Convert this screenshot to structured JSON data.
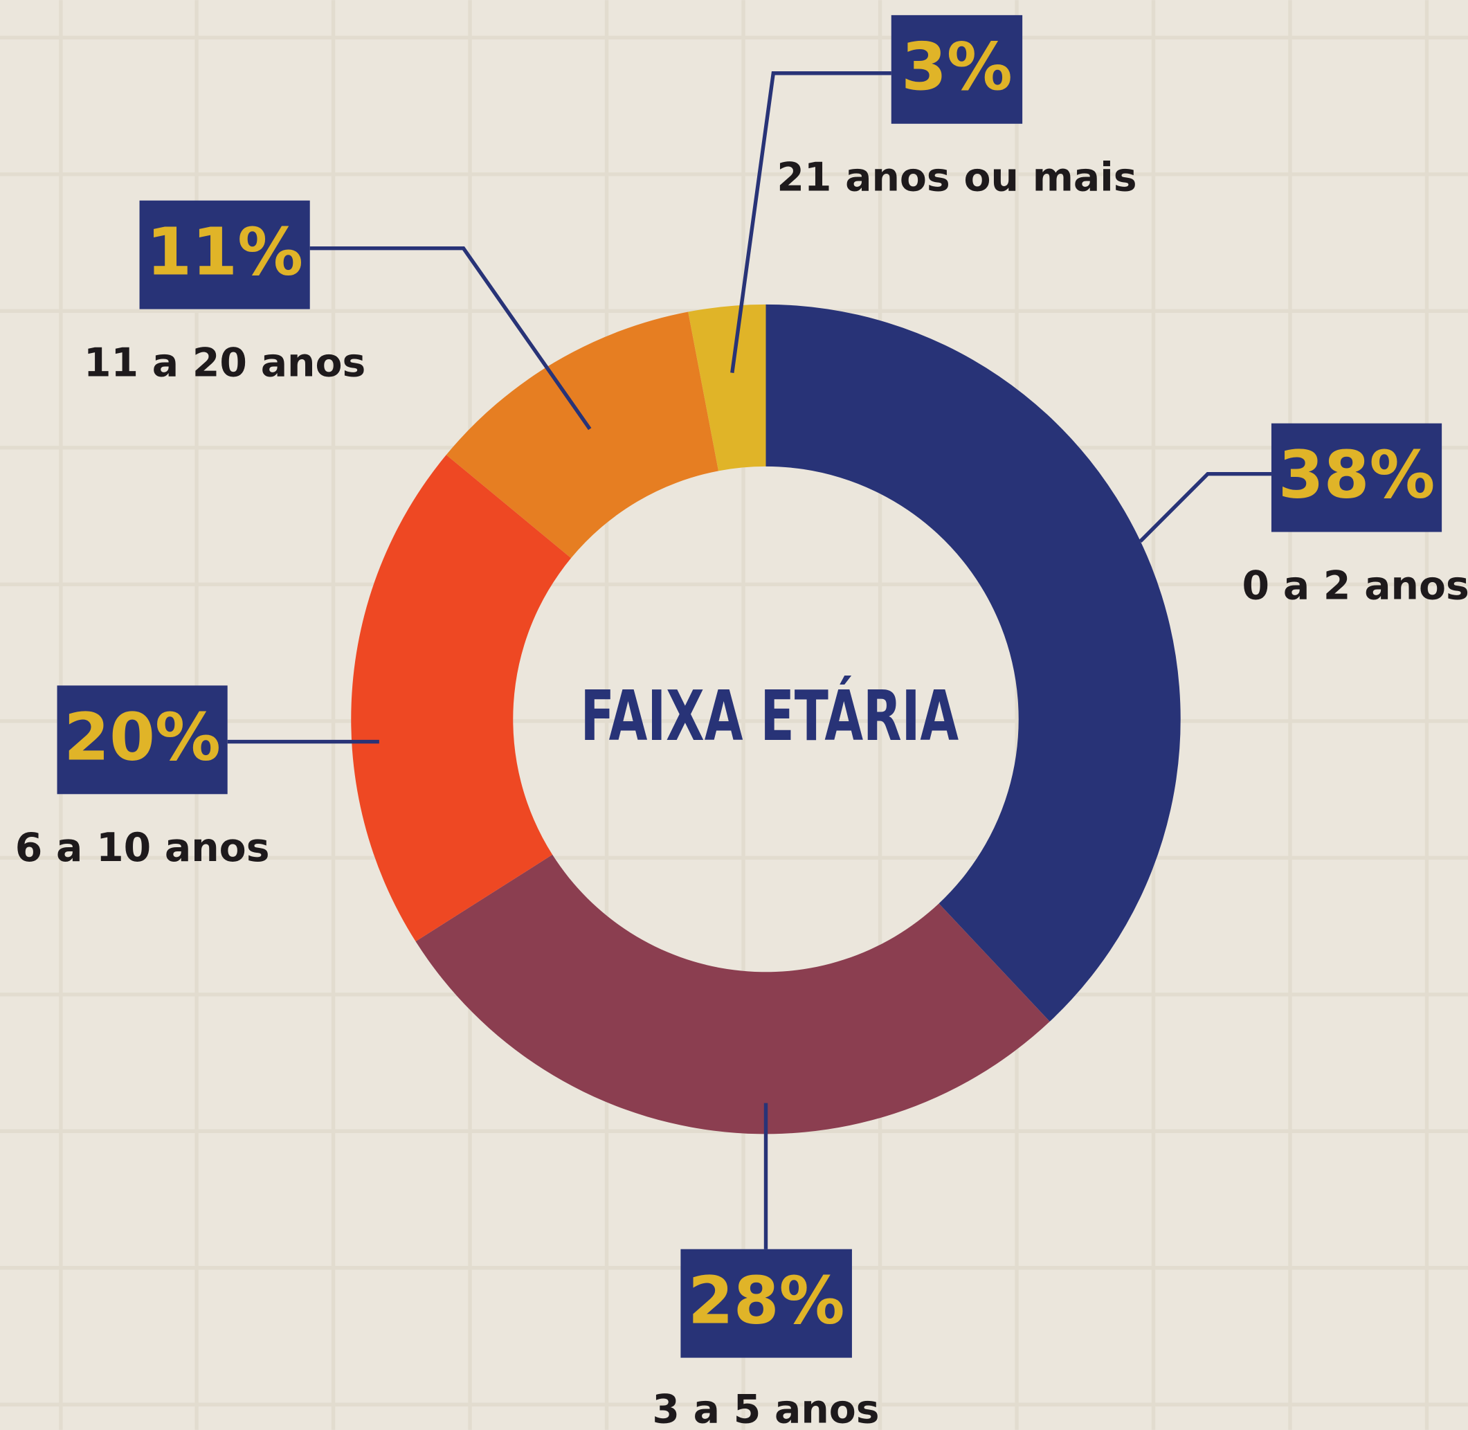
{
  "chart_data": {
    "type": "donut",
    "title": "FAIXA ETÁRIA",
    "categories": [
      "0 a 2 anos",
      "3 a 5 anos",
      "6 a 10 anos",
      "11 a 20 anos",
      "21 anos ou mais"
    ],
    "values": [
      38,
      28,
      20,
      11,
      3
    ],
    "value_labels": [
      "38%",
      "28%",
      "20%",
      "11%",
      "3%"
    ],
    "colors": [
      "#283377",
      "#8b3e50",
      "#ee4823",
      "#e67e22",
      "#e0b428"
    ]
  }
}
